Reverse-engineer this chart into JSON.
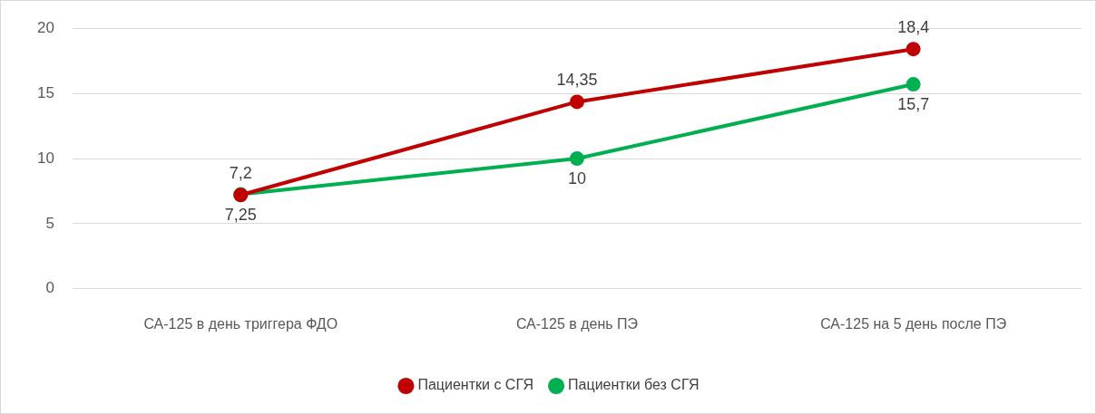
{
  "chart_data": {
    "type": "line",
    "categories": [
      "СА-125 в день триггера ФДО",
      "СА-125 в день ПЭ",
      "СА-125 на 5 день после ПЭ"
    ],
    "series": [
      {
        "name": "Пациентки с СГЯ",
        "color": "#c00000",
        "values": [
          7.2,
          14.35,
          18.4
        ],
        "value_labels": [
          "7,2",
          "14,35",
          "18,4"
        ]
      },
      {
        "name": "Пациентки без СГЯ",
        "color": "#00b050",
        "values": [
          7.25,
          10,
          15.7
        ],
        "value_labels": [
          "7,25",
          "10",
          "15,7"
        ]
      }
    ],
    "ylim": [
      0,
      20
    ],
    "yticks": [
      0,
      5,
      10,
      15,
      20
    ],
    "grid": "y",
    "legend": "bottom",
    "marker": "circle",
    "line_style": "solid"
  }
}
